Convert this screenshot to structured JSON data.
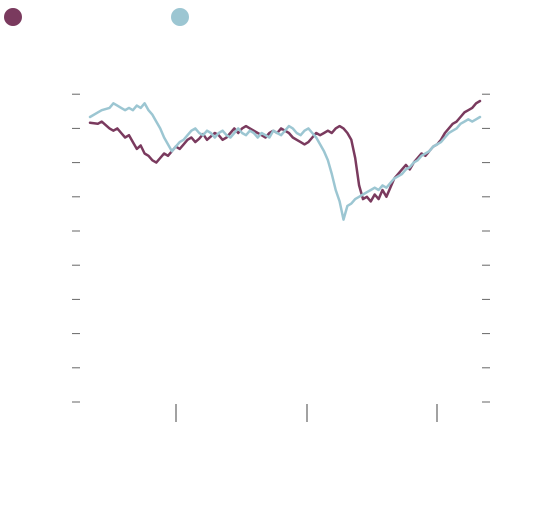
{
  "chart_data": {
    "type": "line",
    "title": "",
    "xlabel": "",
    "ylabel": "",
    "x_ticks": 3,
    "y_ticks": 10,
    "grid": false,
    "legend": "top-left",
    "series": [
      {
        "color": "#7a3a5e",
        "points": [
          [
            0,
            245
          ],
          [
            2,
            244
          ],
          [
            3,
            246
          ],
          [
            5,
            240
          ],
          [
            6,
            238
          ],
          [
            7,
            240
          ],
          [
            8,
            236
          ],
          [
            9,
            232
          ],
          [
            10,
            234
          ],
          [
            11,
            228
          ],
          [
            12,
            222
          ],
          [
            13,
            225
          ],
          [
            14,
            218
          ],
          [
            15,
            216
          ],
          [
            16,
            212
          ],
          [
            17,
            210
          ],
          [
            18,
            214
          ],
          [
            19,
            218
          ],
          [
            20,
            216
          ],
          [
            21,
            220
          ],
          [
            22,
            224
          ],
          [
            23,
            222
          ],
          [
            24,
            226
          ],
          [
            25,
            230
          ],
          [
            26,
            232
          ],
          [
            27,
            228
          ],
          [
            28,
            231
          ],
          [
            29,
            235
          ],
          [
            30,
            230
          ],
          [
            31,
            233
          ],
          [
            32,
            236
          ],
          [
            33,
            234
          ],
          [
            34,
            230
          ],
          [
            35,
            232
          ],
          [
            36,
            236
          ],
          [
            37,
            240
          ],
          [
            38,
            236
          ],
          [
            39,
            240
          ],
          [
            40,
            242
          ],
          [
            41,
            240
          ],
          [
            42,
            238
          ],
          [
            43,
            236
          ],
          [
            44,
            234
          ],
          [
            45,
            232
          ],
          [
            46,
            236
          ],
          [
            47,
            238
          ],
          [
            48,
            236
          ],
          [
            49,
            240
          ],
          [
            50,
            238
          ],
          [
            51,
            236
          ],
          [
            52,
            232
          ],
          [
            53,
            230
          ],
          [
            54,
            228
          ],
          [
            55,
            226
          ],
          [
            56,
            228
          ],
          [
            57,
            232
          ],
          [
            58,
            236
          ],
          [
            59,
            234
          ],
          [
            60,
            236
          ],
          [
            61,
            238
          ],
          [
            62,
            236
          ],
          [
            63,
            240
          ],
          [
            64,
            242
          ],
          [
            65,
            240
          ],
          [
            66,
            236
          ],
          [
            67,
            230
          ],
          [
            68,
            214
          ],
          [
            69,
            190
          ],
          [
            70,
            178
          ],
          [
            71,
            180
          ],
          [
            72,
            176
          ],
          [
            73,
            182
          ],
          [
            74,
            178
          ],
          [
            75,
            186
          ],
          [
            76,
            180
          ],
          [
            77,
            188
          ],
          [
            78,
            196
          ],
          [
            79,
            200
          ],
          [
            80,
            204
          ],
          [
            81,
            208
          ],
          [
            82,
            204
          ],
          [
            83,
            210
          ],
          [
            84,
            214
          ],
          [
            85,
            218
          ],
          [
            86,
            216
          ],
          [
            87,
            220
          ],
          [
            88,
            224
          ],
          [
            89,
            226
          ],
          [
            90,
            230
          ],
          [
            91,
            236
          ],
          [
            92,
            240
          ],
          [
            93,
            244
          ],
          [
            94,
            246
          ],
          [
            95,
            250
          ],
          [
            96,
            254
          ],
          [
            97,
            256
          ],
          [
            98,
            258
          ],
          [
            99,
            262
          ],
          [
            100,
            264
          ]
        ]
      },
      {
        "color": "#9cc6d2",
        "points": [
          [
            0,
            250
          ],
          [
            2,
            254
          ],
          [
            3,
            256
          ],
          [
            5,
            258
          ],
          [
            6,
            262
          ],
          [
            7,
            260
          ],
          [
            8,
            258
          ],
          [
            9,
            256
          ],
          [
            10,
            258
          ],
          [
            11,
            256
          ],
          [
            12,
            260
          ],
          [
            13,
            258
          ],
          [
            14,
            262
          ],
          [
            15,
            256
          ],
          [
            16,
            252
          ],
          [
            17,
            246
          ],
          [
            18,
            240
          ],
          [
            19,
            232
          ],
          [
            20,
            226
          ],
          [
            21,
            220
          ],
          [
            22,
            224
          ],
          [
            23,
            228
          ],
          [
            24,
            230
          ],
          [
            25,
            234
          ],
          [
            26,
            238
          ],
          [
            27,
            240
          ],
          [
            28,
            236
          ],
          [
            29,
            234
          ],
          [
            30,
            238
          ],
          [
            31,
            236
          ],
          [
            32,
            232
          ],
          [
            33,
            236
          ],
          [
            34,
            238
          ],
          [
            35,
            234
          ],
          [
            36,
            232
          ],
          [
            37,
            236
          ],
          [
            38,
            240
          ],
          [
            39,
            236
          ],
          [
            40,
            234
          ],
          [
            41,
            238
          ],
          [
            42,
            236
          ],
          [
            43,
            232
          ],
          [
            44,
            236
          ],
          [
            45,
            234
          ],
          [
            46,
            232
          ],
          [
            47,
            238
          ],
          [
            48,
            236
          ],
          [
            49,
            234
          ],
          [
            50,
            238
          ],
          [
            51,
            242
          ],
          [
            52,
            240
          ],
          [
            53,
            236
          ],
          [
            54,
            234
          ],
          [
            55,
            238
          ],
          [
            56,
            240
          ],
          [
            57,
            236
          ],
          [
            58,
            232
          ],
          [
            59,
            226
          ],
          [
            60,
            220
          ],
          [
            61,
            212
          ],
          [
            62,
            200
          ],
          [
            63,
            186
          ],
          [
            64,
            176
          ],
          [
            65,
            160
          ],
          [
            66,
            172
          ],
          [
            67,
            174
          ],
          [
            68,
            178
          ],
          [
            69,
            180
          ],
          [
            70,
            182
          ],
          [
            71,
            184
          ],
          [
            72,
            186
          ],
          [
            73,
            188
          ],
          [
            74,
            186
          ],
          [
            75,
            190
          ],
          [
            76,
            188
          ],
          [
            77,
            192
          ],
          [
            78,
            196
          ],
          [
            79,
            198
          ],
          [
            80,
            200
          ],
          [
            81,
            204
          ],
          [
            82,
            206
          ],
          [
            83,
            210
          ],
          [
            84,
            212
          ],
          [
            85,
            216
          ],
          [
            86,
            218
          ],
          [
            87,
            220
          ],
          [
            88,
            224
          ],
          [
            89,
            226
          ],
          [
            90,
            228
          ],
          [
            91,
            232
          ],
          [
            92,
            236
          ],
          [
            93,
            238
          ],
          [
            94,
            240
          ],
          [
            95,
            244
          ],
          [
            96,
            246
          ],
          [
            97,
            248
          ],
          [
            98,
            246
          ],
          [
            99,
            248
          ],
          [
            100,
            250
          ]
        ]
      }
    ]
  }
}
